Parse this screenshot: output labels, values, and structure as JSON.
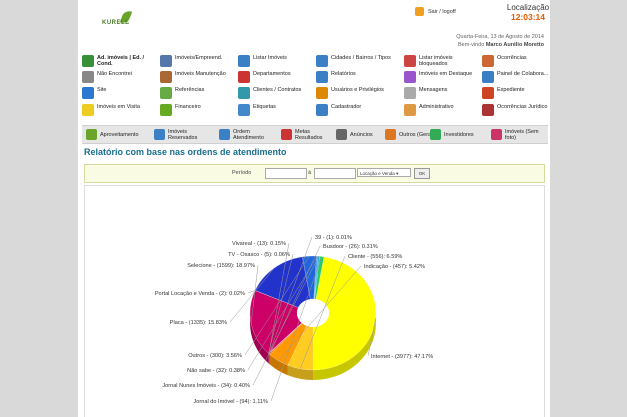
{
  "header": {
    "logo_text": "KURELE",
    "logout_label": "Sair / logoff",
    "location_label": "Localização",
    "location_time": "12:03:14",
    "date_text": "Quarta-Feira, 13 de Agosto de 2014",
    "welcome_prefix": "Bem-vindo",
    "user_name": "Marco Aurélio Moretto"
  },
  "menu": {
    "items": [
      {
        "label": "Ad. imóveis | Ed. / Cond.",
        "icon": "add-home-icon",
        "color": "#3a8f3a"
      },
      {
        "label": "Imóveis/Empreend.",
        "icon": "tools-icon",
        "color": "#5577aa"
      },
      {
        "label": "Listar Imóveis",
        "icon": "list-icon",
        "color": "#3b7fc4"
      },
      {
        "label": "Cidades / Bairros / Tipos",
        "icon": "list-icon",
        "color": "#3b7fc4"
      },
      {
        "label": "Listar imóveis bloqueados",
        "icon": "doc-icon",
        "color": "#cc4444"
      },
      {
        "label": "Ocorrências",
        "icon": "folder-icon",
        "color": "#cc6633"
      },
      {
        "label": "Não Encontrei",
        "icon": "magnifier-icon",
        "color": "#888888"
      },
      {
        "label": "Imóveis Manutenção",
        "icon": "house-icon",
        "color": "#aa6633"
      },
      {
        "label": "Departamentos",
        "icon": "people-icon",
        "color": "#cc3333"
      },
      {
        "label": "Relatórios",
        "icon": "report-icon",
        "color": "#3b7fc4"
      },
      {
        "label": "Imóveis em Destaque",
        "icon": "star-house-icon",
        "color": "#9955cc"
      },
      {
        "label": "Painel de Colabora...",
        "icon": "panel-icon",
        "color": "#3b7fc4"
      },
      {
        "label": "Site",
        "icon": "globe-icon",
        "color": "#2a78d0"
      },
      {
        "label": "Referências",
        "icon": "table-icon",
        "color": "#66aa44"
      },
      {
        "label": "Clientes / Contratos",
        "icon": "contacts-icon",
        "color": "#3399aa"
      },
      {
        "label": "Usuários e Privilégios",
        "icon": "users-icon",
        "color": "#dd8800"
      },
      {
        "label": "Mensagens",
        "icon": "mail-icon",
        "color": "#aaaaaa"
      },
      {
        "label": "Expediente",
        "icon": "calendar-icon",
        "color": "#cc4422"
      },
      {
        "label": "Imóveis em Visita",
        "icon": "star-icon",
        "color": "#eecc22"
      },
      {
        "label": "Financeiro",
        "icon": "money-icon",
        "color": "#66aa22"
      },
      {
        "label": "Etiquetas",
        "icon": "tag-icon",
        "color": "#4488cc"
      },
      {
        "label": "Cadastrador",
        "icon": "id-card-icon",
        "color": "#3b7fc4"
      },
      {
        "label": "Administrativo",
        "icon": "handshake-icon",
        "color": "#dd9944"
      },
      {
        "label": "Ocorrências Jurídico",
        "icon": "legal-icon",
        "color": "#aa3333"
      }
    ]
  },
  "tabs": [
    {
      "label": "Aproveitamento",
      "icon": "chart-icon",
      "color": "#6aa52b"
    },
    {
      "label": "Imóveis Reservados",
      "icon": "grid-icon",
      "color": "#3b7fc4"
    },
    {
      "label": "Ordem Atendimento",
      "icon": "list-icon",
      "color": "#3b7fc4"
    },
    {
      "label": "Metas Resultados",
      "icon": "bar-chart-icon",
      "color": "#cc3333"
    },
    {
      "label": "Anúncios",
      "icon": "megaphone-icon",
      "color": "#666666"
    },
    {
      "label": "Outros (Geral)",
      "icon": "pie-icon",
      "color": "#dd7722"
    },
    {
      "label": "Investidores",
      "icon": "pie-icon",
      "color": "#33aa55"
    },
    {
      "label": "Imóveis (Sem foto)",
      "icon": "pie-icon",
      "color": "#cc3366"
    }
  ],
  "title": "Relatório com base nas ordens de atendimento",
  "filter": {
    "period_label": "Período",
    "to_label": "à",
    "date_from": "",
    "date_to": "",
    "select_value": "Locação e Venda",
    "ok_label": "OK"
  },
  "chart_data": {
    "type": "pie",
    "categories": [
      "Internet",
      "Cliente",
      "Indicação",
      "Busdoor",
      "39",
      "Vivareal",
      "TV - Osasco",
      "Selecione",
      "Portal Locação e Venda",
      "Placa",
      "Outros",
      "Não sabe",
      "Jornal Nunes Imóveis",
      "Jornal do Imóvel"
    ],
    "values": [
      3977,
      556,
      457,
      26,
      1,
      13,
      5,
      1599,
      2,
      1335,
      300,
      32,
      34,
      94
    ],
    "percents": [
      "47.17%",
      "6.59%",
      "5.42%",
      "0.31%",
      "0.01%",
      "0.15%",
      "0.06%",
      "18.97%",
      "0.02%",
      "15.83%",
      "3.56%",
      "0.38%",
      "0.40%",
      "1.11%"
    ],
    "labels": [
      "Internet - (3977): 47.17%",
      "Cliente - (556): 6.59%",
      "Indicação - (457): 5.42%",
      "Busdoor - (26): 0.31%",
      "39 - (1): 0.01%",
      "Vivareal - (13): 0.15%",
      "TV - Osasco - (5): 0.06%",
      "Selecione - (1599): 18.97%",
      "Portal Locação e Venda - (2): 0.02%",
      "Placa - (1335): 15.83%",
      "Outros - (300): 3.56%",
      "Não sabe - (32): 0.38%",
      "Jornal Nunes Imóveis - (34): 0.40%",
      "Jornal do Imóvel - (94): 1.11%"
    ],
    "colors": [
      "#ffff00",
      "#ffcc22",
      "#ff9900",
      "#ff6600",
      "#ff3300",
      "#cc3366",
      "#cc0066",
      "#cc0066",
      "#6622cc",
      "#2233cc",
      "#2266dd",
      "#3399ff",
      "#22aadd",
      "#22cc66"
    ]
  }
}
